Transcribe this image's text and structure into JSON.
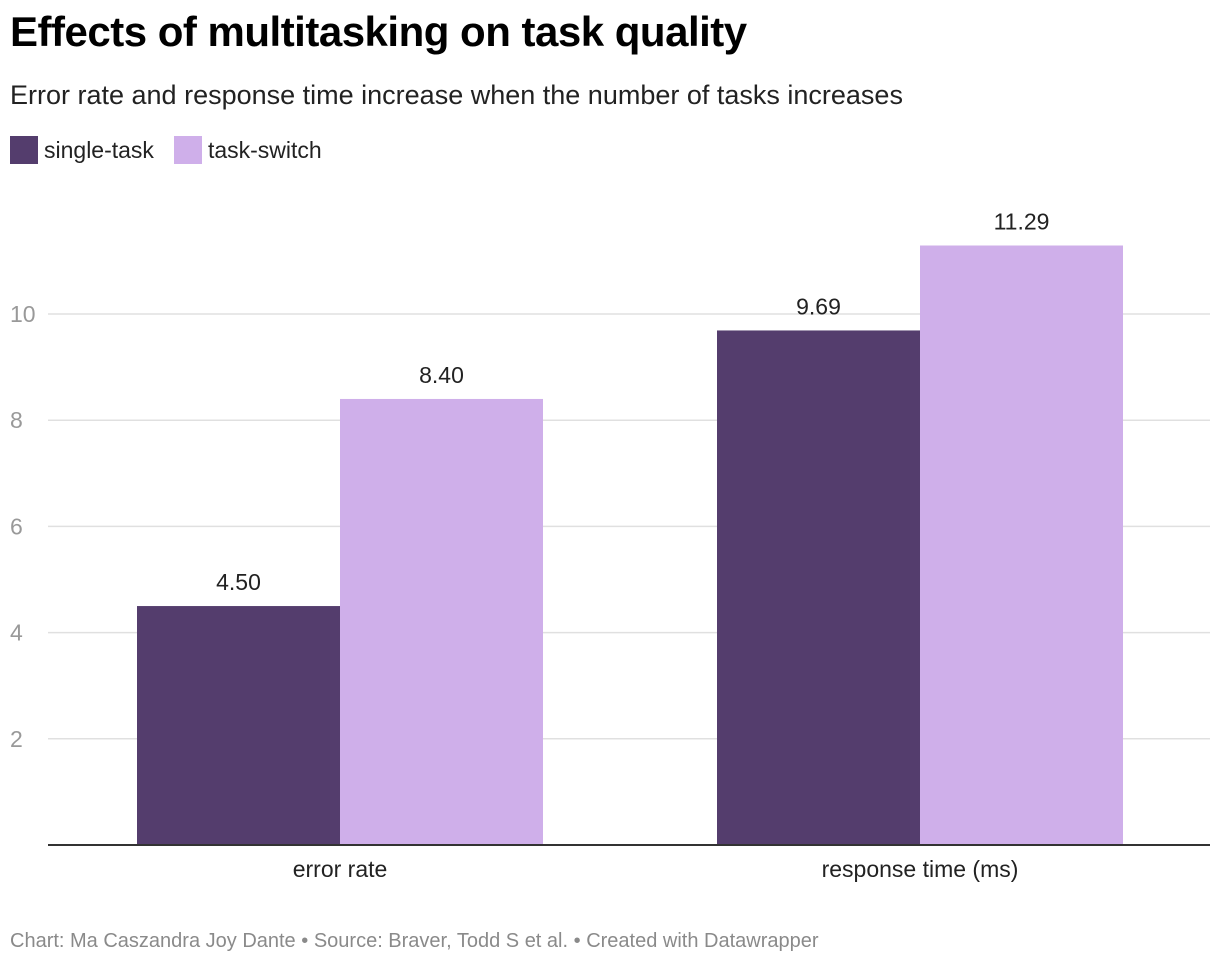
{
  "title": "Effects of multitasking on task quality",
  "subtitle": "Error rate and response time increase when the number of tasks increases",
  "footer": {
    "credit": "Chart: Ma Caszandra Joy Dante",
    "separator": "•",
    "source": "Source: Braver, Todd S et al.",
    "created": "Created with Datawrapper"
  },
  "colors": {
    "single_task": "#543d6d",
    "task_switch": "#cfafea",
    "gridline": "#e0e0e0",
    "axis": "#333333",
    "tick_label": "#999999"
  },
  "chart_data": {
    "type": "bar",
    "title": "Effects of multitasking on task quality",
    "subtitle": "Error rate and response time increase when the number of tasks increases",
    "categories": [
      "error rate",
      "response time (ms)"
    ],
    "series": [
      {
        "name": "single-task",
        "values": [
          4.5,
          9.69
        ],
        "labels": [
          "4.50",
          "9.69"
        ]
      },
      {
        "name": "task-switch",
        "values": [
          8.4,
          11.29
        ],
        "labels": [
          "8.40",
          "11.29"
        ]
      }
    ],
    "yticks": [
      2,
      4,
      6,
      8,
      10
    ],
    "ylim": [
      0,
      12
    ],
    "grid": true,
    "legend": "top-left",
    "xlabel": "",
    "ylabel": ""
  }
}
